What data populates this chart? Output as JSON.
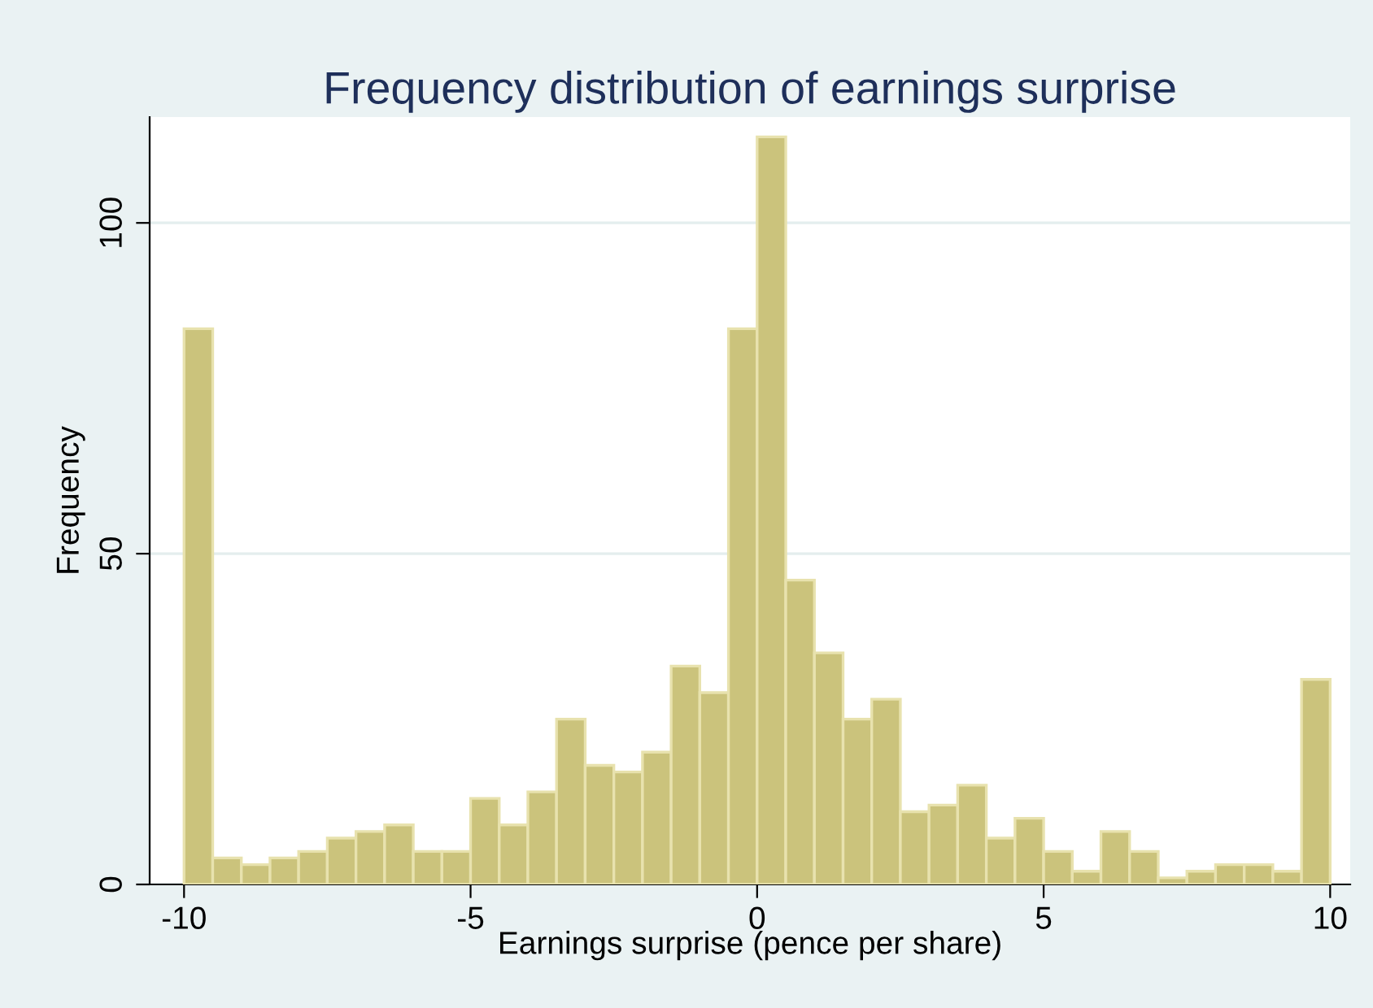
{
  "chart_data": {
    "type": "histogram",
    "title": "Frequency distribution of earnings surprise",
    "xlabel": "Earnings surprise (pence per share)",
    "ylabel": "Frequency",
    "bins": [
      -10,
      -9.5,
      -9,
      -8.5,
      -8,
      -7.5,
      -7,
      -6.5,
      -6,
      -5.5,
      -5,
      -4.5,
      -4,
      -3.5,
      -3,
      -2.5,
      -2,
      -1.5,
      -1,
      -0.5,
      0,
      0.5,
      1,
      1.5,
      2,
      2.5,
      3,
      3.5,
      4,
      4.5,
      5,
      5.5,
      6,
      6.5,
      7,
      7.5,
      8,
      8.5,
      9,
      9.5,
      10
    ],
    "values": [
      84,
      4,
      3,
      4,
      5,
      7,
      8,
      9,
      5,
      5,
      13,
      9,
      14,
      25,
      18,
      17,
      20,
      33,
      29,
      84,
      113,
      46,
      35,
      25,
      28,
      11,
      12,
      15,
      7,
      10,
      5,
      2,
      8,
      5,
      1,
      2,
      3,
      3,
      2,
      31
    ],
    "color": "#cbc37c",
    "xlim": [
      -10.6,
      10.35
    ],
    "ylim": [
      0,
      116
    ],
    "xticks": [
      -10,
      -5,
      0,
      5,
      10
    ],
    "yticks": [
      0,
      50,
      100
    ],
    "grid": "y"
  }
}
